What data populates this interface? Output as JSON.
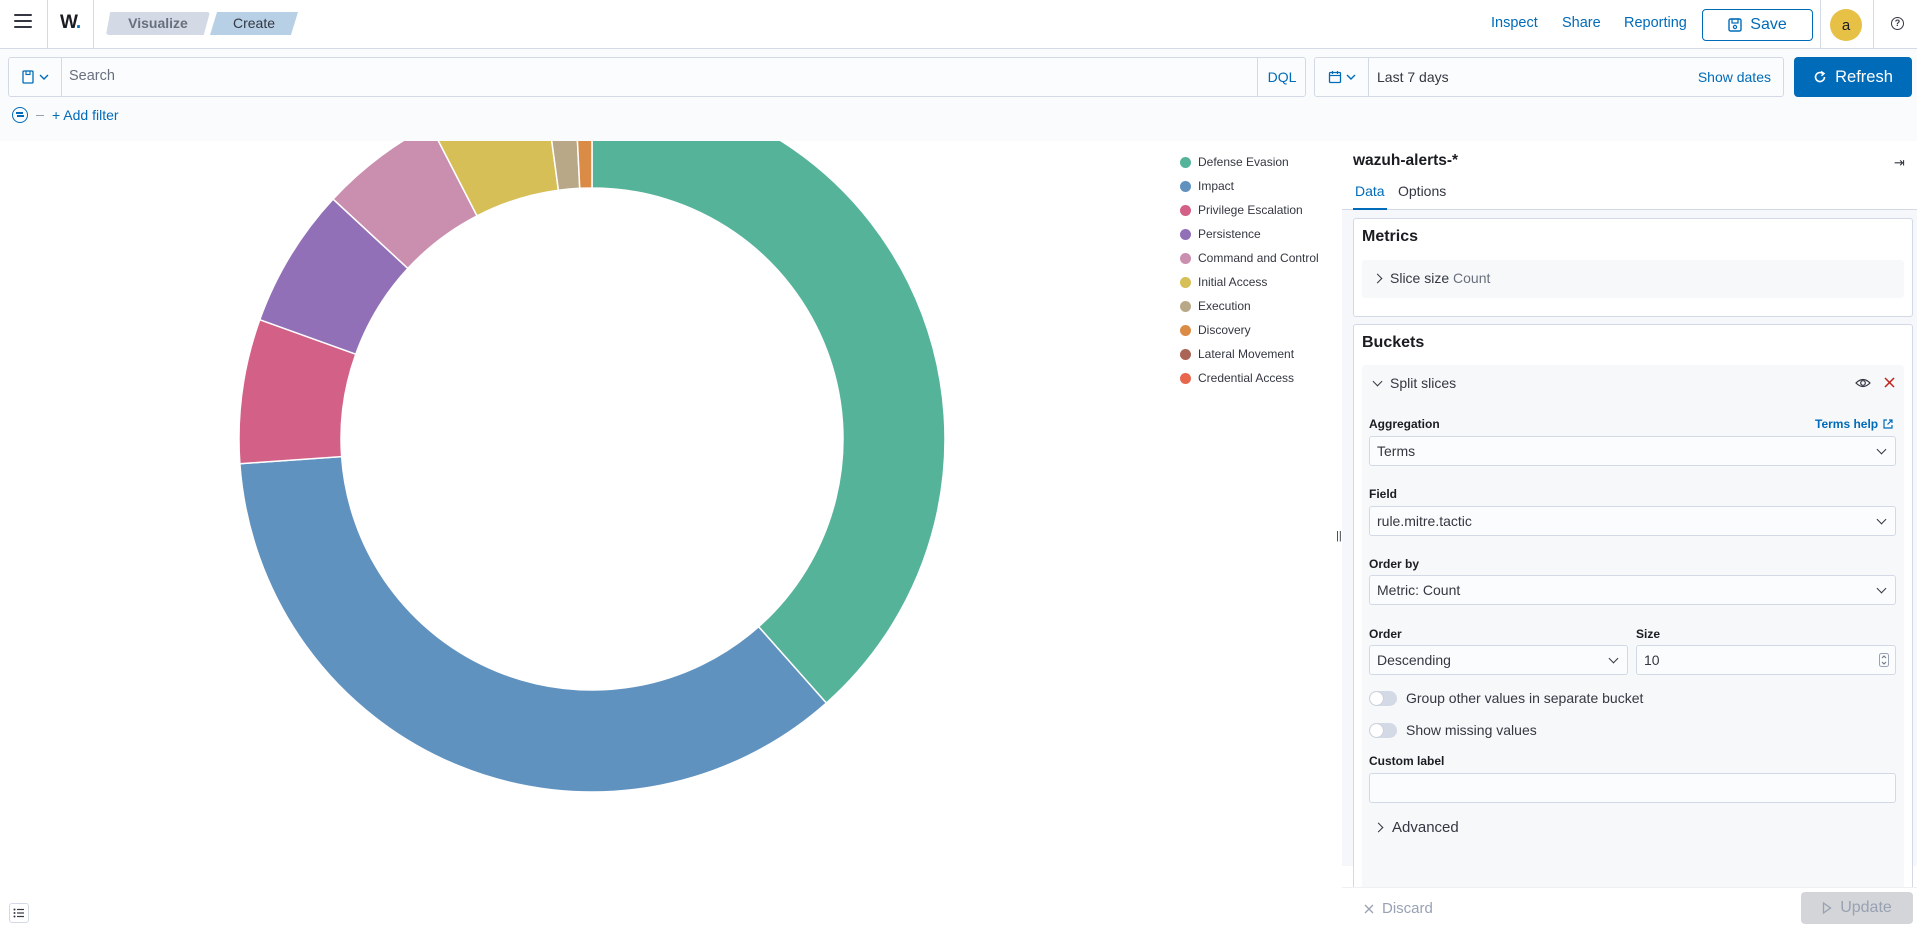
{
  "header": {
    "breadcrumbs": [
      "Visualize",
      "Create"
    ],
    "links": [
      "Inspect",
      "Share",
      "Reporting"
    ],
    "save_label": "Save",
    "avatar_letter": "a"
  },
  "query": {
    "placeholder": "Search",
    "language": "DQL",
    "date_range": "Last 7 days",
    "show_dates": "Show dates",
    "refresh_label": "Refresh",
    "add_filter": "+ Add filter"
  },
  "chart_data": {
    "type": "pie",
    "donut": true,
    "legend_position": "top-right",
    "categories": [
      "Defense Evasion",
      "Impact",
      "Privilege Escalation",
      "Persistence",
      "Command and Control",
      "Initial Access",
      "Execution",
      "Discovery",
      "Lateral Movement",
      "Credential Access"
    ],
    "values": [
      39.6,
      36.5,
      6.8,
      6.6,
      5.7,
      5.6,
      1.4,
      0.8,
      0,
      0
    ],
    "colors": [
      "#54b399",
      "#6092c0",
      "#d36086",
      "#9170b8",
      "#ca8eae",
      "#d6bf57",
      "#b9a888",
      "#da8b45",
      "#aa6556",
      "#e7664c"
    ]
  },
  "sidebar": {
    "index_pattern": "wazuh-alerts-*",
    "tabs": [
      "Data",
      "Options"
    ],
    "metrics": {
      "title": "Metrics",
      "row_label": "Slice size",
      "row_sub": "Count"
    },
    "buckets": {
      "title": "Buckets",
      "split_label": "Split slices",
      "aggregation_label": "Aggregation",
      "terms_help": "Terms help",
      "aggregation_value": "Terms",
      "field_label": "Field",
      "field_value": "rule.mitre.tactic",
      "order_by_label": "Order by",
      "order_by_value": "Metric: Count",
      "order_label": "Order",
      "order_value": "Descending",
      "size_label": "Size",
      "size_value": "10",
      "group_other": "Group other values in separate bucket",
      "show_missing": "Show missing values",
      "custom_label": "Custom label",
      "custom_label_value": "",
      "advanced": "Advanced"
    },
    "discard_label": "Discard",
    "update_label": "Update"
  }
}
